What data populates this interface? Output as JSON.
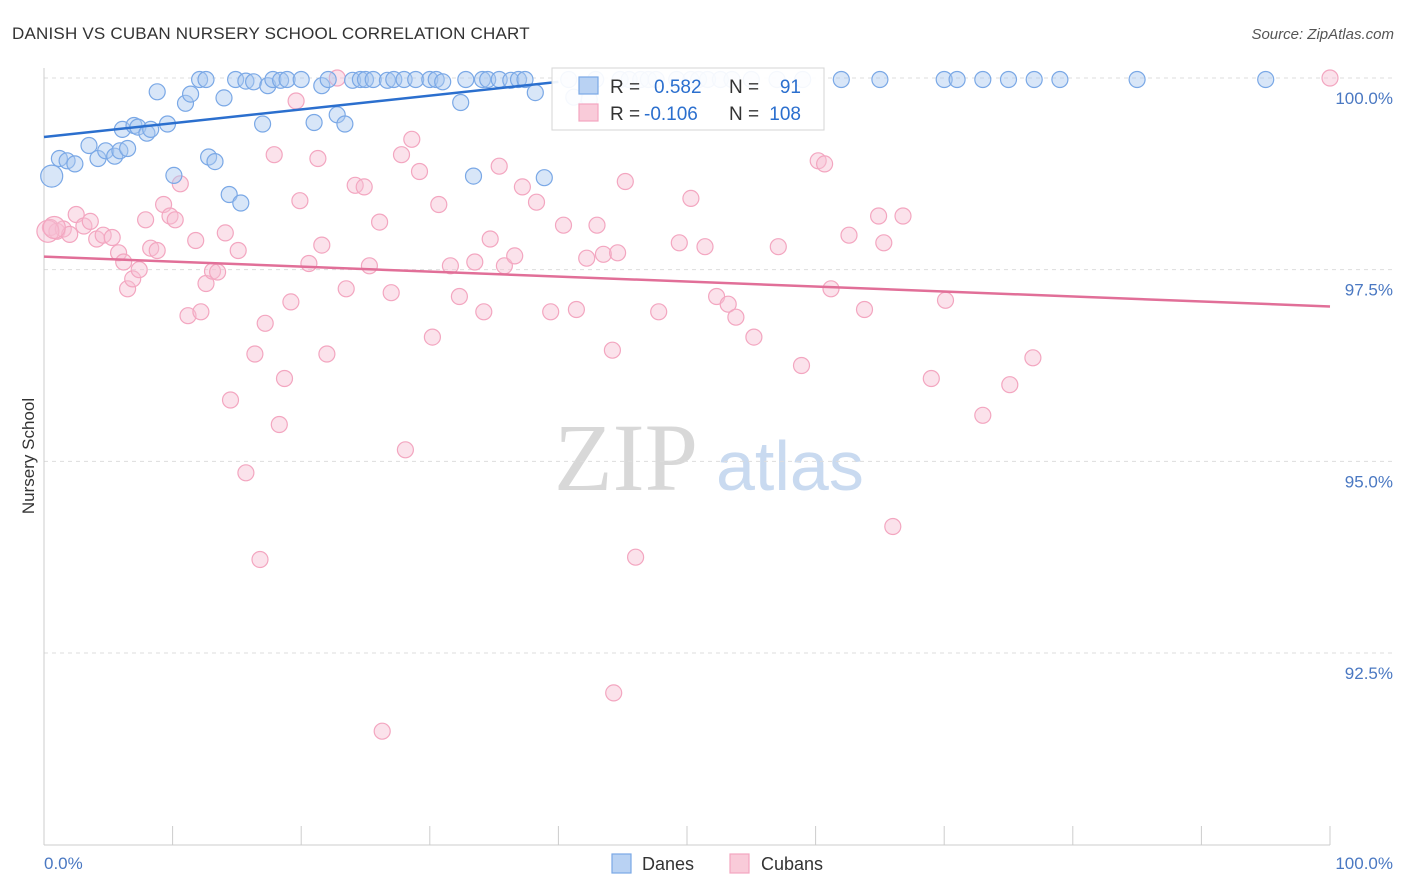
{
  "chart_data": {
    "type": "scatter",
    "title": "DANISH VS CUBAN NURSERY SCHOOL CORRELATION CHART",
    "source": "Source: ZipAtlas.com",
    "ylabel": "Nursery School",
    "xlabel": "",
    "xlim": [
      0,
      100
    ],
    "ylim": [
      90.0,
      100.45
    ],
    "y_ticks": [
      {
        "value": 100.0,
        "label": "100.0%"
      },
      {
        "value": 97.5,
        "label": "97.5%"
      },
      {
        "value": 95.0,
        "label": "95.0%"
      },
      {
        "value": 92.5,
        "label": "92.5%"
      }
    ],
    "x_ticks": [
      {
        "value": 0,
        "label": "0.0%"
      },
      {
        "value": 100,
        "label": "100.0%"
      }
    ],
    "watermark": {
      "zip": "ZIP",
      "atlas": "atlas"
    },
    "legend": [
      {
        "series": "Danes",
        "r_label": "R =",
        "r_value": "0.582",
        "n_label": "N =",
        "n_value": "91"
      },
      {
        "series": "Cubans",
        "r_label": "R =",
        "r_value": "-0.106",
        "n_label": "N =",
        "n_value": "108"
      }
    ],
    "series": [
      {
        "name": "Danes",
        "color": "#7aa8e6",
        "line_color": "#2b6fce",
        "trend": [
          [
            0,
            99.23
          ],
          [
            40,
            99.95
          ]
        ],
        "points": [
          [
            0.6,
            98.72
          ],
          [
            1.2,
            98.95
          ],
          [
            1.8,
            98.92
          ],
          [
            2.4,
            98.88
          ],
          [
            3.5,
            99.12
          ],
          [
            4.2,
            98.95
          ],
          [
            4.8,
            99.05
          ],
          [
            5.5,
            98.98
          ],
          [
            5.9,
            99.05
          ],
          [
            6.1,
            99.33
          ],
          [
            6.5,
            99.08
          ],
          [
            7.0,
            99.38
          ],
          [
            7.3,
            99.36
          ],
          [
            8.0,
            99.28
          ],
          [
            8.3,
            99.33
          ],
          [
            8.8,
            99.82
          ],
          [
            9.6,
            99.4
          ],
          [
            10.1,
            98.73
          ],
          [
            11.0,
            99.67
          ],
          [
            11.4,
            99.79
          ],
          [
            12.1,
            99.98
          ],
          [
            12.6,
            99.98
          ],
          [
            12.8,
            98.97
          ],
          [
            13.3,
            98.91
          ],
          [
            14.0,
            99.74
          ],
          [
            14.4,
            98.48
          ],
          [
            14.9,
            99.98
          ],
          [
            15.3,
            98.37
          ],
          [
            15.7,
            99.96
          ],
          [
            16.3,
            99.95
          ],
          [
            17.0,
            99.4
          ],
          [
            17.4,
            99.9
          ],
          [
            17.8,
            99.98
          ],
          [
            18.4,
            99.97
          ],
          [
            18.9,
            99.98
          ],
          [
            20.0,
            99.98
          ],
          [
            21.0,
            99.42
          ],
          [
            21.6,
            99.9
          ],
          [
            22.1,
            99.98
          ],
          [
            22.8,
            99.52
          ],
          [
            23.4,
            99.4
          ],
          [
            24.0,
            99.97
          ],
          [
            24.6,
            99.98
          ],
          [
            25.0,
            99.98
          ],
          [
            25.6,
            99.98
          ],
          [
            26.7,
            99.97
          ],
          [
            27.2,
            99.98
          ],
          [
            28.0,
            99.98
          ],
          [
            28.9,
            99.98
          ],
          [
            30.0,
            99.98
          ],
          [
            30.5,
            99.98
          ],
          [
            31.0,
            99.95
          ],
          [
            32.4,
            99.68
          ],
          [
            32.8,
            99.98
          ],
          [
            33.4,
            98.72
          ],
          [
            34.1,
            99.98
          ],
          [
            34.5,
            99.98
          ],
          [
            35.4,
            99.98
          ],
          [
            36.3,
            99.97
          ],
          [
            36.9,
            99.98
          ],
          [
            37.4,
            99.98
          ],
          [
            38.2,
            99.81
          ],
          [
            38.9,
            98.7
          ],
          [
            40.8,
            99.98
          ],
          [
            41.2,
            99.75
          ],
          [
            42.4,
            99.72
          ],
          [
            42.9,
            99.98
          ],
          [
            44.8,
            99.98
          ],
          [
            45.5,
            99.98
          ],
          [
            46.4,
            99.98
          ],
          [
            47.0,
            99.98
          ],
          [
            47.6,
            99.98
          ],
          [
            49.2,
            99.98
          ],
          [
            50.3,
            99.98
          ],
          [
            50.9,
            99.98
          ],
          [
            51.6,
            99.98
          ],
          [
            52.6,
            99.98
          ],
          [
            53.5,
            99.98
          ],
          [
            55.0,
            99.98
          ],
          [
            57.0,
            99.98
          ],
          [
            59.0,
            99.98
          ],
          [
            62.0,
            99.98
          ],
          [
            65.0,
            99.98
          ],
          [
            70.0,
            99.98
          ],
          [
            71.0,
            99.98
          ],
          [
            73.0,
            99.98
          ],
          [
            75.0,
            99.98
          ],
          [
            77.0,
            99.98
          ],
          [
            79.0,
            99.98
          ],
          [
            85.0,
            99.98
          ],
          [
            95.0,
            99.98
          ]
        ]
      },
      {
        "name": "Cubans",
        "color": "#f3a6c0",
        "line_color": "#e16f98",
        "trend": [
          [
            0,
            97.67
          ],
          [
            100,
            97.02
          ]
        ],
        "points": [
          [
            0.5,
            98.05
          ],
          [
            1.0,
            98.0
          ],
          [
            1.5,
            98.03
          ],
          [
            2.0,
            97.96
          ],
          [
            2.5,
            98.22
          ],
          [
            3.1,
            98.07
          ],
          [
            3.6,
            98.13
          ],
          [
            4.1,
            97.9
          ],
          [
            4.6,
            97.95
          ],
          [
            5.3,
            97.92
          ],
          [
            5.8,
            97.72
          ],
          [
            6.2,
            97.6
          ],
          [
            6.5,
            97.25
          ],
          [
            6.9,
            97.38
          ],
          [
            7.4,
            97.5
          ],
          [
            7.9,
            98.15
          ],
          [
            8.3,
            97.78
          ],
          [
            8.8,
            97.75
          ],
          [
            9.3,
            98.35
          ],
          [
            9.8,
            98.2
          ],
          [
            10.2,
            98.15
          ],
          [
            10.6,
            98.62
          ],
          [
            11.2,
            96.9
          ],
          [
            11.8,
            97.88
          ],
          [
            12.2,
            96.95
          ],
          [
            12.6,
            97.32
          ],
          [
            13.1,
            97.48
          ],
          [
            13.5,
            97.47
          ],
          [
            14.1,
            97.98
          ],
          [
            14.5,
            95.8
          ],
          [
            15.1,
            97.75
          ],
          [
            15.7,
            94.85
          ],
          [
            16.4,
            96.4
          ],
          [
            16.8,
            93.72
          ],
          [
            17.2,
            96.8
          ],
          [
            17.9,
            99.0
          ],
          [
            18.3,
            95.48
          ],
          [
            18.7,
            96.08
          ],
          [
            19.2,
            97.08
          ],
          [
            19.6,
            99.7
          ],
          [
            19.9,
            98.4
          ],
          [
            20.6,
            97.58
          ],
          [
            21.3,
            98.95
          ],
          [
            21.6,
            97.82
          ],
          [
            22.0,
            96.4
          ],
          [
            22.8,
            100.0
          ],
          [
            23.5,
            97.25
          ],
          [
            24.2,
            98.6
          ],
          [
            24.9,
            98.58
          ],
          [
            25.3,
            97.55
          ],
          [
            26.1,
            98.12
          ],
          [
            27.0,
            97.2
          ],
          [
            27.8,
            99.0
          ],
          [
            28.1,
            95.15
          ],
          [
            28.6,
            99.2
          ],
          [
            29.2,
            98.78
          ],
          [
            30.2,
            96.62
          ],
          [
            30.7,
            98.35
          ],
          [
            31.6,
            97.55
          ],
          [
            32.3,
            97.15
          ],
          [
            33.5,
            97.6
          ],
          [
            34.2,
            96.95
          ],
          [
            34.7,
            97.9
          ],
          [
            35.4,
            98.85
          ],
          [
            35.8,
            97.55
          ],
          [
            36.6,
            97.68
          ],
          [
            37.2,
            98.58
          ],
          [
            38.3,
            98.38
          ],
          [
            39.4,
            96.95
          ],
          [
            40.4,
            98.08
          ],
          [
            41.4,
            96.98
          ],
          [
            42.2,
            97.65
          ],
          [
            43.0,
            98.08
          ],
          [
            43.5,
            97.7
          ],
          [
            44.2,
            96.45
          ],
          [
            44.6,
            97.72
          ],
          [
            45.2,
            98.65
          ],
          [
            46.0,
            93.75
          ],
          [
            47.8,
            96.95
          ],
          [
            49.4,
            97.85
          ],
          [
            50.3,
            98.43
          ],
          [
            51.4,
            97.8
          ],
          [
            52.3,
            97.15
          ],
          [
            53.2,
            97.05
          ],
          [
            53.8,
            96.88
          ],
          [
            55.2,
            96.62
          ],
          [
            57.1,
            97.8
          ],
          [
            58.9,
            96.25
          ],
          [
            60.2,
            98.92
          ],
          [
            60.7,
            98.88
          ],
          [
            61.2,
            97.25
          ],
          [
            62.6,
            97.95
          ],
          [
            63.8,
            96.98
          ],
          [
            64.9,
            98.2
          ],
          [
            65.3,
            97.85
          ],
          [
            66.0,
            94.15
          ],
          [
            66.8,
            98.2
          ],
          [
            69.0,
            96.08
          ],
          [
            70.1,
            97.1
          ],
          [
            73.0,
            95.6
          ],
          [
            75.1,
            96.0
          ],
          [
            76.9,
            96.35
          ],
          [
            100.0,
            100.0
          ],
          [
            44.3,
            91.98
          ],
          [
            26.3,
            91.48
          ],
          [
            0.3,
            98.0
          ],
          [
            0.8,
            98.05
          ]
        ]
      }
    ]
  }
}
